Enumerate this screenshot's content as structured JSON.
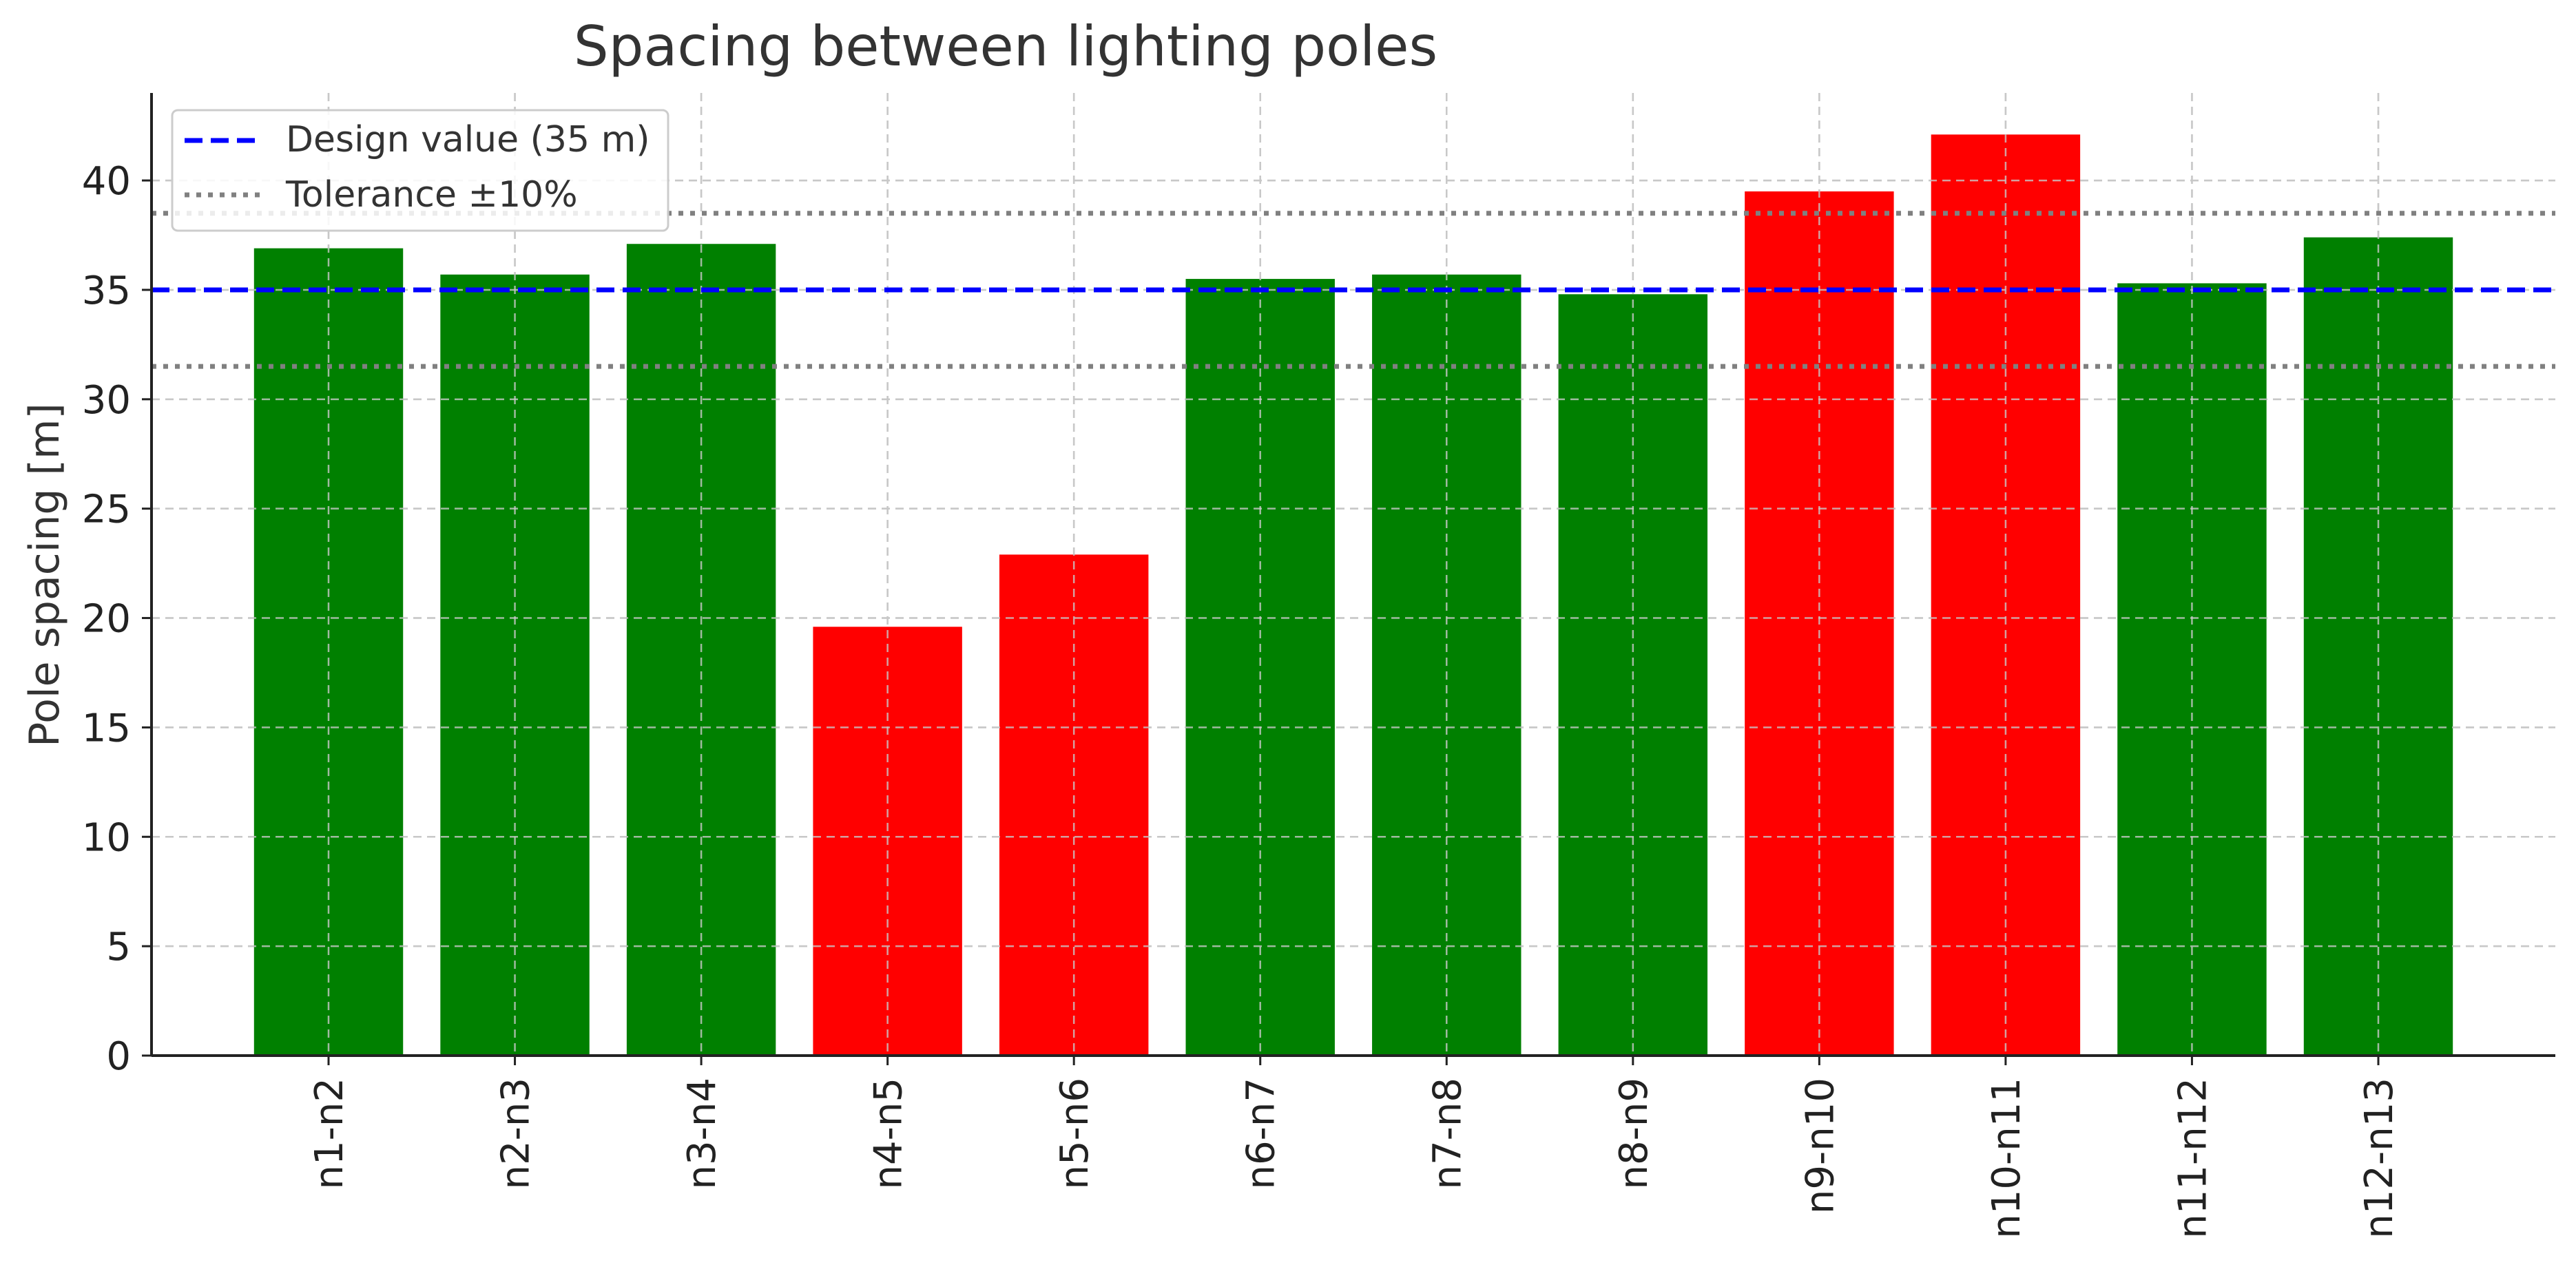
{
  "chart_data": {
    "type": "bar",
    "title": "Spacing between lighting poles",
    "xlabel": "",
    "ylabel": "Pole spacing [m]",
    "ylim": [
      0,
      44
    ],
    "yticks": [
      0,
      5,
      10,
      15,
      20,
      25,
      30,
      35,
      40
    ],
    "categories": [
      "n1-n2",
      "n2-n3",
      "n3-n4",
      "n4-n5",
      "n5-n6",
      "n6-n7",
      "n7-n8",
      "n8-n9",
      "n9-n10",
      "n10-n11",
      "n11-n12",
      "n12-n13"
    ],
    "values": [
      36.9,
      35.7,
      37.1,
      19.6,
      22.9,
      35.5,
      35.7,
      34.8,
      39.5,
      42.1,
      35.3,
      37.4
    ],
    "bar_colors": [
      "#008000",
      "#008000",
      "#008000",
      "#ff0000",
      "#ff0000",
      "#008000",
      "#008000",
      "#008000",
      "#ff0000",
      "#ff0000",
      "#008000",
      "#008000"
    ],
    "reference_lines": [
      {
        "label": "Design value (35 m)",
        "value": 35,
        "style": "dashed",
        "color": "#0000ff"
      },
      {
        "label": "Tolerance ±10%",
        "values": [
          31.5,
          38.5
        ],
        "style": "dotted",
        "color": "#808080"
      }
    ],
    "grid": true,
    "legend_position": "top-left"
  }
}
